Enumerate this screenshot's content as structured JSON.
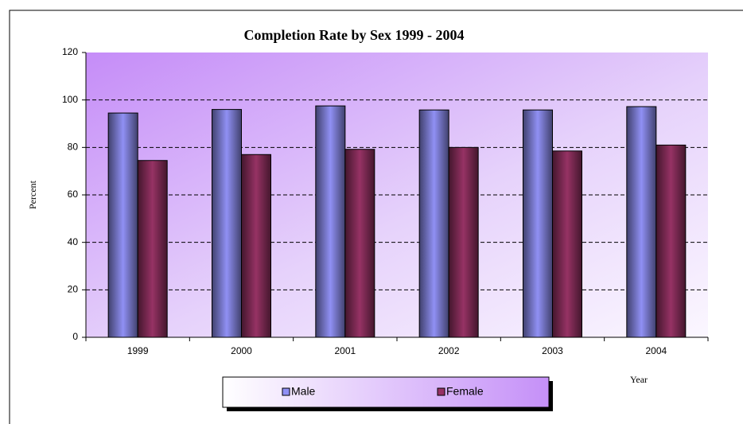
{
  "chart_data": {
    "type": "bar",
    "title": "Completion Rate by Sex  1999 - 2004",
    "x_label": "Year",
    "y_label": "Percent",
    "categories": [
      "1999",
      "2000",
      "2001",
      "2002",
      "2003",
      "2004"
    ],
    "series": [
      {
        "name": "Male",
        "color": "#9090f4",
        "values": [
          94.5,
          96,
          97.5,
          95.8,
          95.8,
          97.2
        ]
      },
      {
        "name": "Female",
        "color": "#963264",
        "values": [
          74.5,
          77,
          79.2,
          80,
          78.5,
          81
        ]
      }
    ],
    "ylim": [
      0,
      120
    ],
    "yticks": [
      0,
      20,
      40,
      60,
      80,
      100,
      120
    ],
    "grid": true,
    "legend": "bottom"
  }
}
